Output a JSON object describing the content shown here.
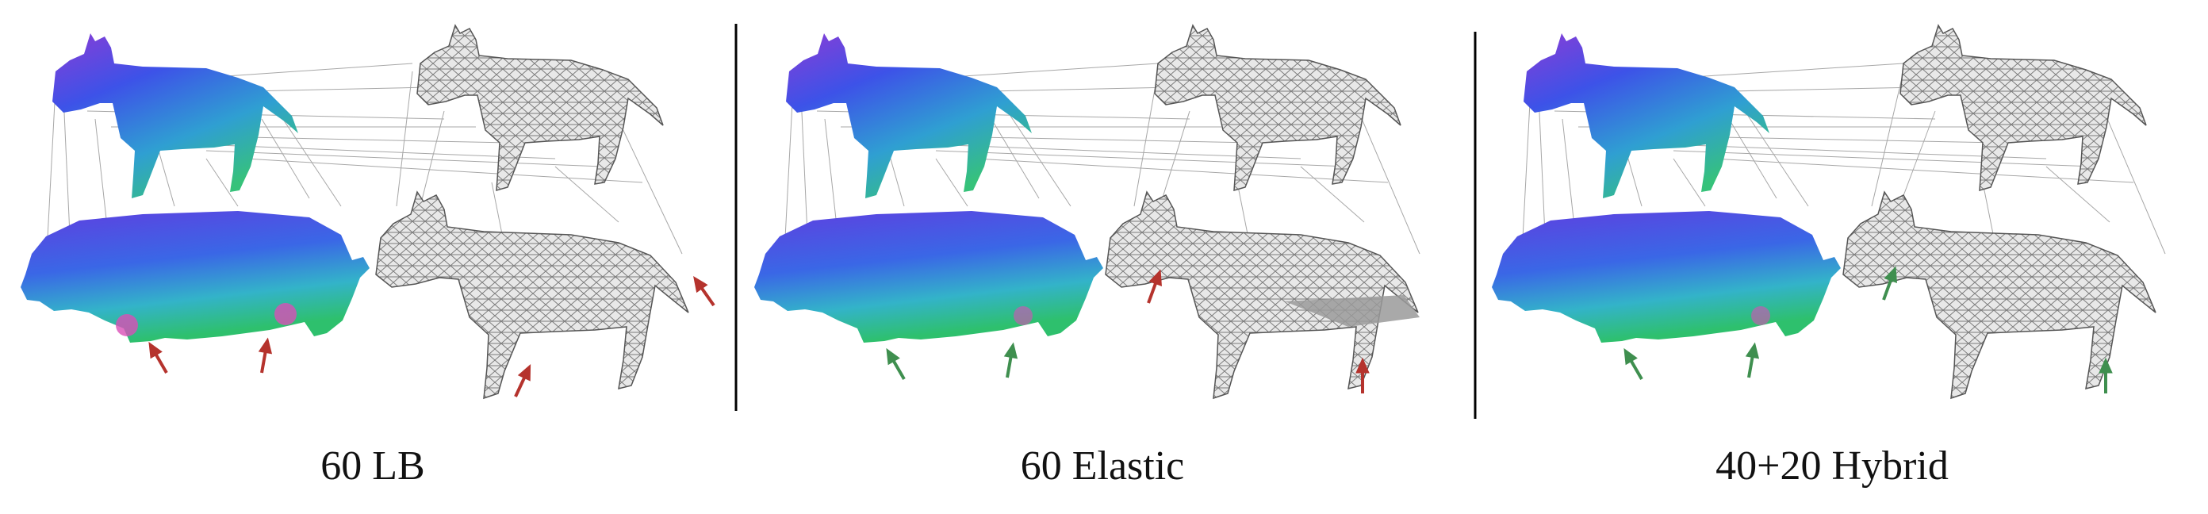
{
  "panels": [
    {
      "caption": "60 LB",
      "arrow_color": "#b5332d",
      "result_quality": "bad"
    },
    {
      "caption": "60 Elastic",
      "arrow_color": "#3f8f4f",
      "result_quality": "mixed"
    },
    {
      "caption": "40+20 Hybrid",
      "arrow_color": "#3f8f4f",
      "result_quality": "good"
    }
  ],
  "colors": {
    "correspondence_lines": "#888888",
    "mesh_fill": "#c9c9c9",
    "mesh_wire": "#5a5a5a",
    "divider": "#000000",
    "bad_arrow": "#b5332d",
    "good_arrow": "#3f8f4f"
  },
  "shapes": {
    "source_top": "horse-icon",
    "source_bottom": "hippo-icon",
    "target_top": "horse-icon",
    "target_bottom": "horse-icon"
  }
}
